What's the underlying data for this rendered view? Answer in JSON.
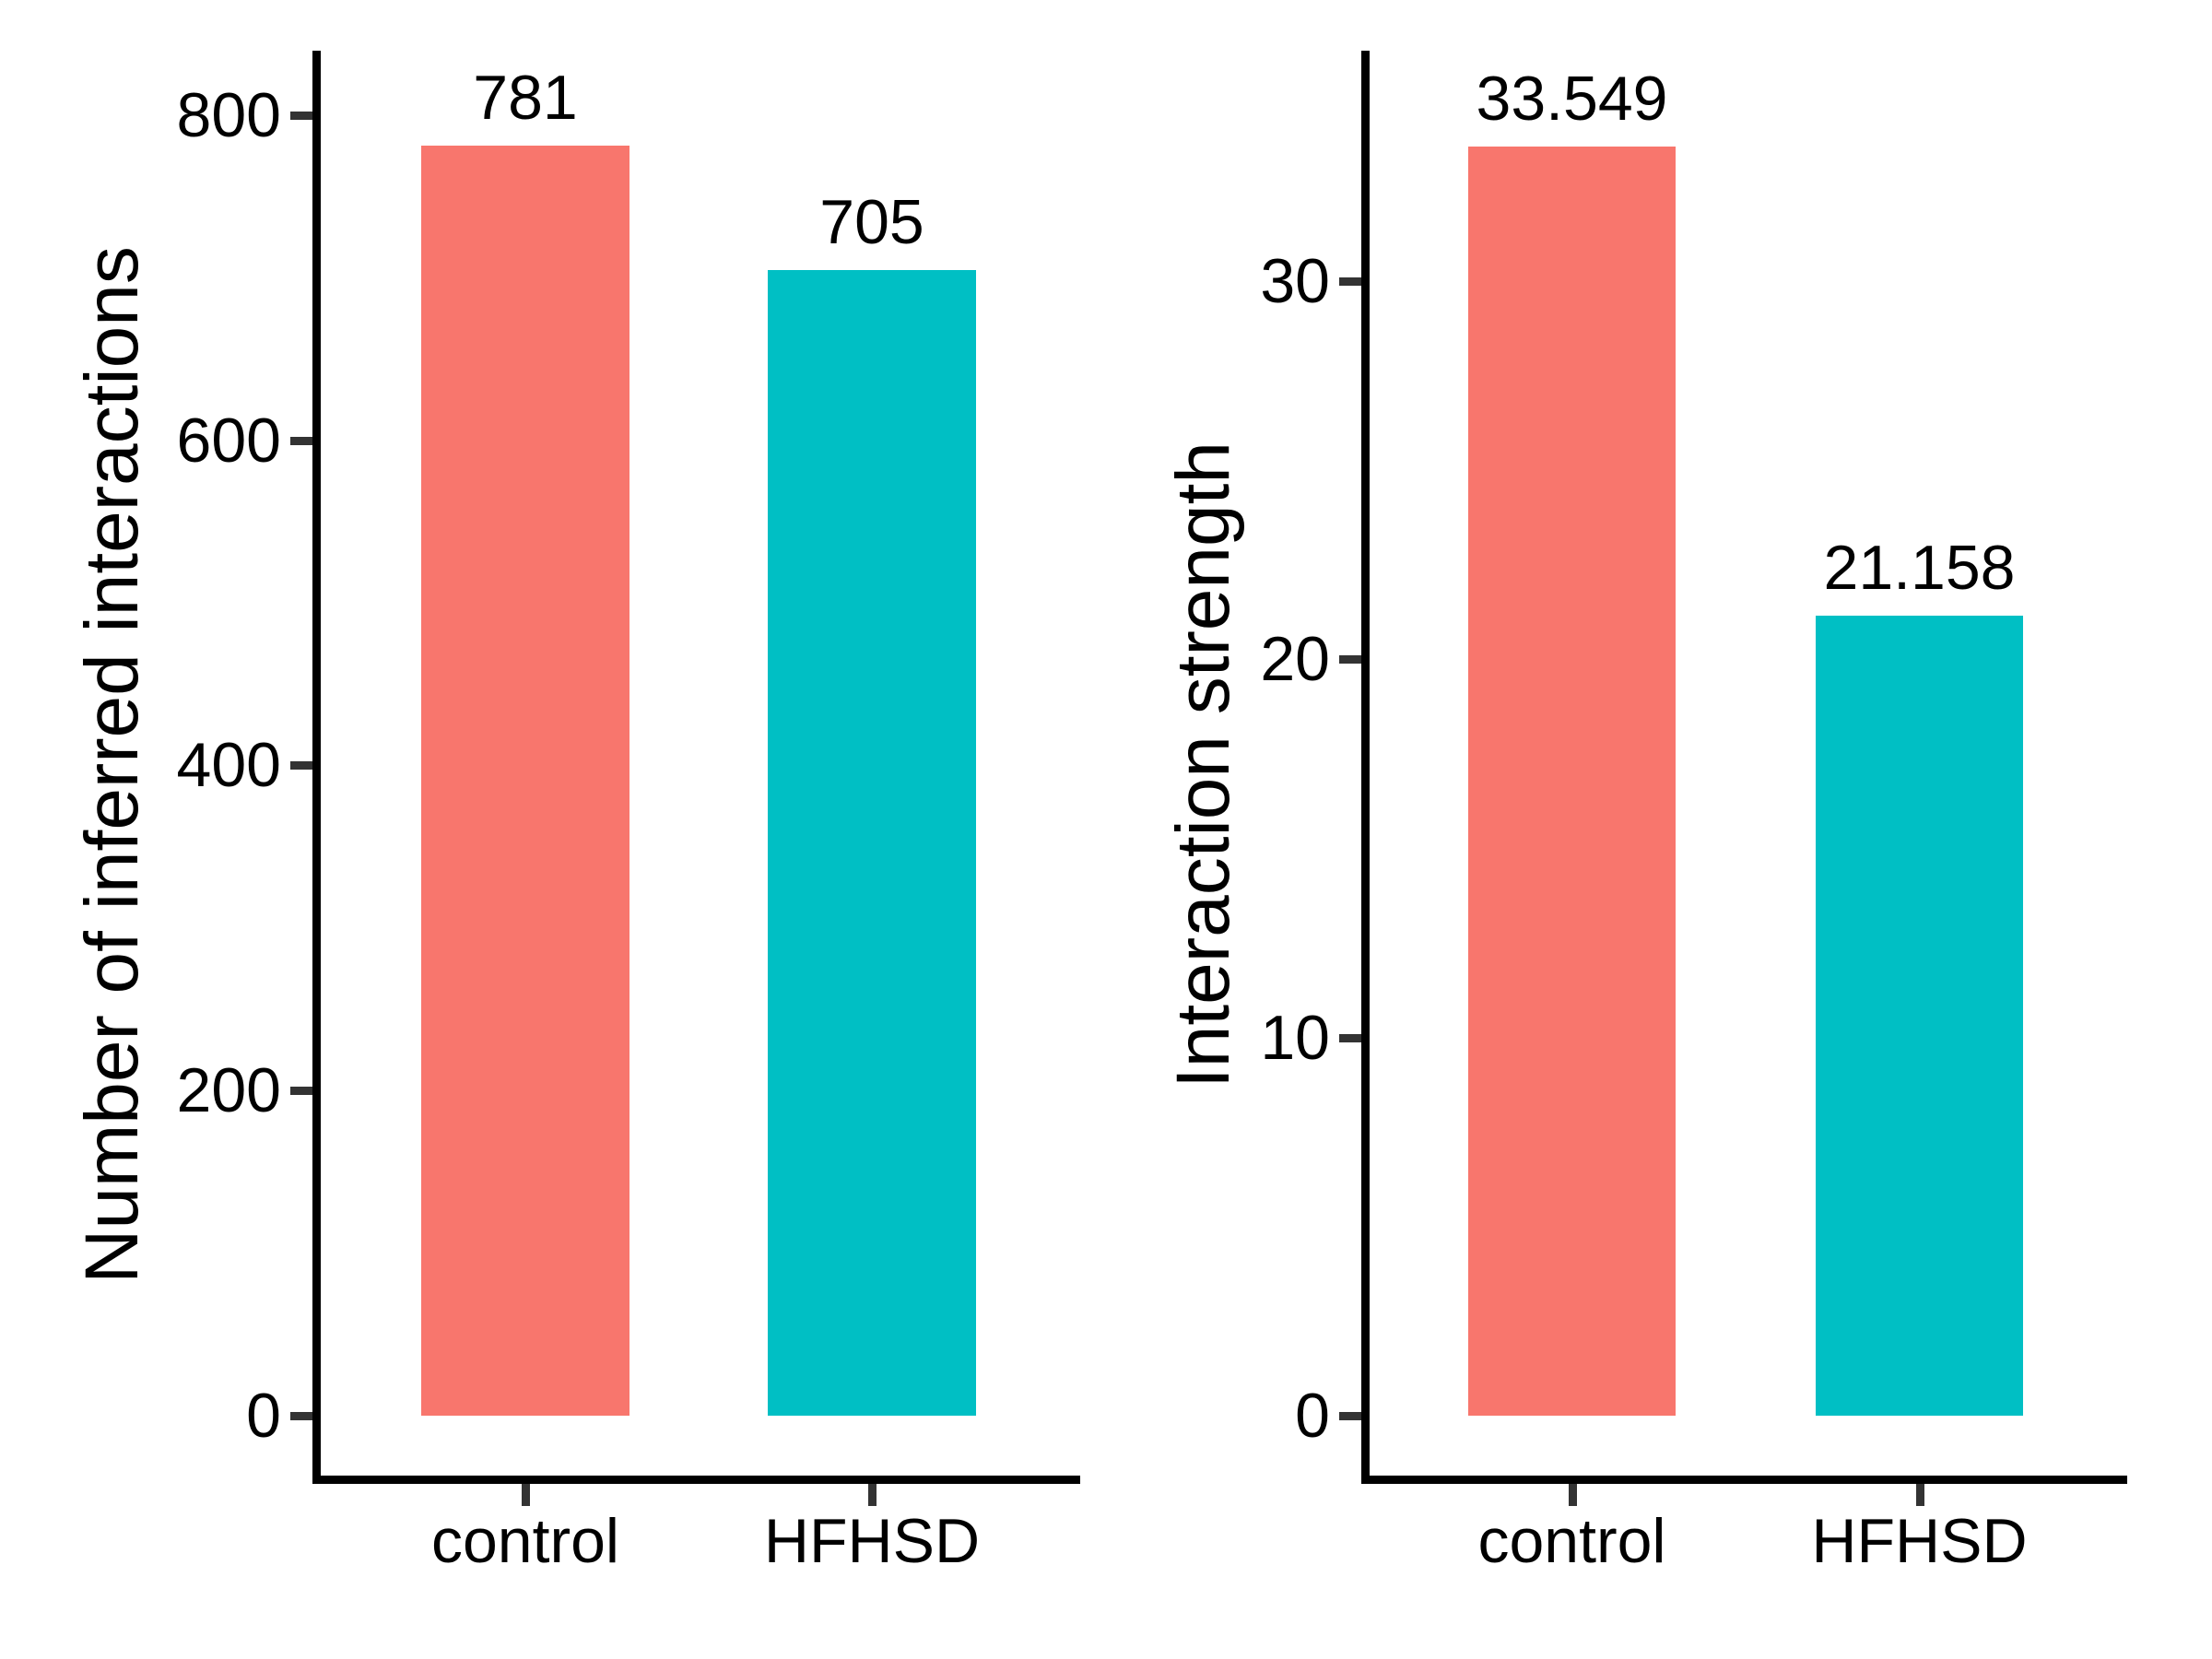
{
  "figure": {
    "background": "#ffffff",
    "text_color": "#000000",
    "axis_color": "#000000",
    "tick_color": "#333333"
  },
  "chart_data": [
    {
      "type": "bar",
      "title": "",
      "xlabel": "",
      "ylabel": "Number of inferred interactions",
      "categories": [
        "control",
        "HFHSD"
      ],
      "values": [
        781,
        705
      ],
      "value_labels": [
        "781",
        "705"
      ],
      "yticks": [
        0,
        200,
        400,
        600,
        800
      ],
      "ytick_labels": [
        "0",
        "200",
        "400",
        "600",
        "800"
      ],
      "ylim": [
        0,
        840
      ],
      "grid": false,
      "legend": "none",
      "bar_colors": [
        "#F8766D",
        "#00BFC4"
      ]
    },
    {
      "type": "bar",
      "title": "",
      "xlabel": "",
      "ylabel": "Interaction strength",
      "categories": [
        "control",
        "HFHSD"
      ],
      "values": [
        33.549,
        21.158
      ],
      "value_labels": [
        "33.549",
        "21.158"
      ],
      "yticks": [
        0,
        10,
        20,
        30
      ],
      "ytick_labels": [
        "0",
        "10",
        "20",
        "30"
      ],
      "ylim": [
        0,
        35.2
      ],
      "grid": false,
      "legend": "none",
      "bar_colors": [
        "#F8766D",
        "#00BFC4"
      ]
    }
  ]
}
